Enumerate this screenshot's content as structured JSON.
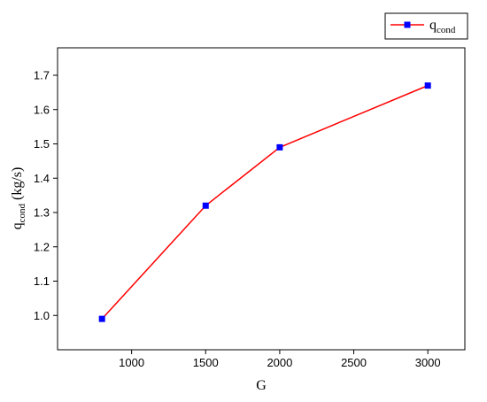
{
  "chart_data": {
    "type": "line",
    "x": [
      800,
      1500,
      2000,
      3000
    ],
    "series": [
      {
        "name_main": "q",
        "name_sub": "cond",
        "values": [
          0.99,
          1.32,
          1.49,
          1.67
        ],
        "color": "#ff0000",
        "marker_color": "#0000ff",
        "marker": "square"
      }
    ],
    "xlabel": "G",
    "ylabel_main": "q",
    "ylabel_sub": "cond",
    "ylabel_unit": " (kg/s)",
    "xlim": [
      500,
      3250
    ],
    "ylim": [
      0.9,
      1.78
    ],
    "xticks": [
      1000,
      1500,
      2000,
      2500,
      3000
    ],
    "xtick_labels": [
      "1000",
      "1500",
      "2000",
      "2500",
      "3000"
    ],
    "yticks": [
      1.0,
      1.1,
      1.2,
      1.3,
      1.4,
      1.5,
      1.6,
      1.7
    ],
    "ytick_labels": [
      "1.0",
      "1.1",
      "1.2",
      "1.3",
      "1.4",
      "1.5",
      "1.6",
      "1.7"
    ],
    "grid": false,
    "legend_position": "top-right"
  }
}
